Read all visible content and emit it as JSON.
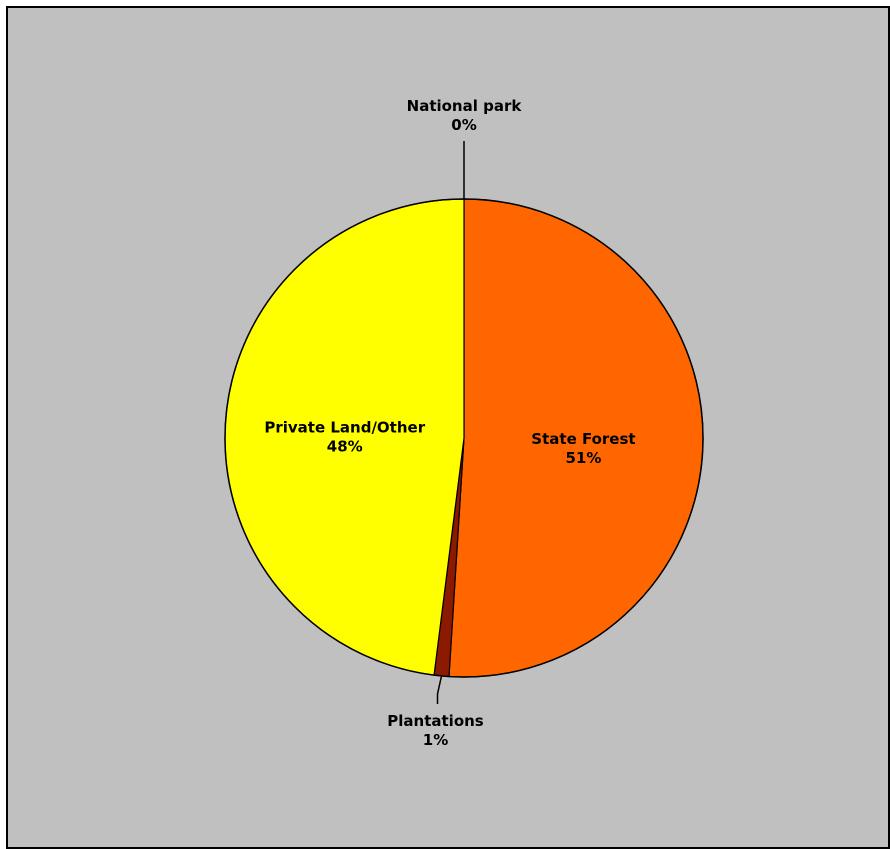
{
  "chart_data": {
    "type": "pie",
    "background_color": "#c0c0c0",
    "legend": "none",
    "slices": [
      {
        "name": "State Forest",
        "value": 51,
        "percent_label": "51%",
        "color": "#ff6600"
      },
      {
        "name": "Plantations",
        "value": 1,
        "percent_label": "1%",
        "color": "#8b1a00"
      },
      {
        "name": "Private Land/Other",
        "value": 48,
        "percent_label": "48%",
        "color": "#ffff00"
      },
      {
        "name": "National park",
        "value": 0,
        "percent_label": "0%",
        "color": "#ffffff"
      }
    ]
  }
}
